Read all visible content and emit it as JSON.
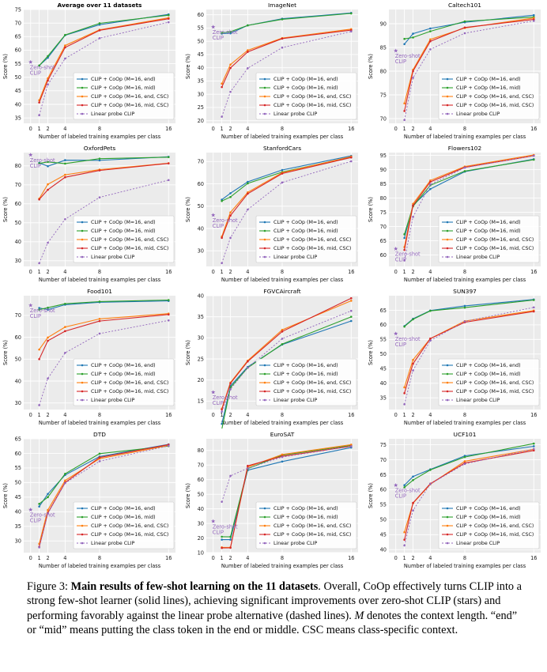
{
  "figure": {
    "x_values": [
      0,
      1,
      2,
      4,
      8,
      16
    ],
    "x_ticks": [
      "0",
      "1",
      "2",
      "4",
      "8",
      "16"
    ],
    "xlabel": "Number of labeled training examples per class",
    "ylabel": "Score (%)",
    "zero_shot_label": [
      "Zero-shot",
      "CLIP"
    ],
    "legend": [
      {
        "name": "CLIP + CoOp (M=16, end)",
        "color": "#1f77b4"
      },
      {
        "name": "CLIP + CoOp (M=16, mid)",
        "color": "#2ca02c"
      },
      {
        "name": "CLIP + CoOp (M=16, end, CSC)",
        "color": "#ff7f0e"
      },
      {
        "name": "CLIP + CoOp (M=16, mid, CSC)",
        "color": "#d62728"
      },
      {
        "name": "Linear probe CLIP",
        "color": "#9467bd"
      }
    ],
    "colors": {
      "plot_bg": "#ebebeb",
      "grid": "#ffffff",
      "zero_shot": "#9467bd"
    }
  },
  "chart_data": [
    {
      "type": "line",
      "title": "Average over 11 datasets",
      "title_bold": true,
      "ylim": [
        33,
        75
      ],
      "yticks": [
        35,
        40,
        45,
        50,
        55,
        60,
        65,
        70,
        75
      ],
      "zero_shot": 55.6,
      "series": [
        {
          "name": "CLIP + CoOp (M=16, end)",
          "values": [
            54.3,
            57.2,
            65.5,
            69.4,
            73.2
          ]
        },
        {
          "name": "CLIP + CoOp (M=16, mid)",
          "values": [
            54.3,
            57.8,
            65.6,
            69.9,
            72.9
          ]
        },
        {
          "name": "CLIP + CoOp (M=16, end, CSC)",
          "values": [
            41.5,
            49.6,
            61.7,
            67.5,
            71.9
          ]
        },
        {
          "name": "CLIP + CoOp (M=16, mid, CSC)",
          "values": [
            40.7,
            48.8,
            61.0,
            67.3,
            71.6
          ]
        },
        {
          "name": "Linear probe CLIP",
          "values": [
            36.0,
            47.3,
            56.9,
            64.4,
            70.3
          ]
        }
      ]
    },
    {
      "type": "line",
      "title": "ImageNet",
      "ylim": [
        19,
        62
      ],
      "yticks": [
        20,
        25,
        30,
        35,
        40,
        45,
        50,
        55,
        60
      ],
      "zero_shot": 55.4,
      "series": [
        {
          "name": "CLIP + CoOp (M=16, end)",
          "values": [
            52.9,
            53.0,
            56.0,
            58.5,
            60.7
          ]
        },
        {
          "name": "CLIP + CoOp (M=16, mid)",
          "values": [
            53.2,
            53.6,
            56.0,
            58.3,
            60.5
          ]
        },
        {
          "name": "CLIP + CoOp (M=16, end, CSC)",
          "values": [
            34.0,
            41.2,
            46.6,
            51.2,
            54.6
          ]
        },
        {
          "name": "CLIP + CoOp (M=16, mid, CSC)",
          "values": [
            32.7,
            39.9,
            46.0,
            51.0,
            54.2
          ]
        },
        {
          "name": "Linear probe CLIP",
          "values": [
            21.5,
            30.9,
            39.8,
            47.6,
            53.7
          ]
        }
      ]
    },
    {
      "type": "line",
      "title": "Caltech101",
      "ylim": [
        69,
        93
      ],
      "yticks": [
        70,
        75,
        80,
        85,
        90
      ],
      "zero_shot": 84.3,
      "series": [
        {
          "name": "CLIP + CoOp (M=16, end)",
          "values": [
            85.7,
            87.9,
            89.0,
            90.3,
            91.8
          ]
        },
        {
          "name": "CLIP + CoOp (M=16, mid)",
          "values": [
            86.8,
            87.1,
            88.4,
            90.5,
            91.4
          ]
        },
        {
          "name": "CLIP + CoOp (M=16, end, CSC)",
          "values": [
            73.2,
            80.3,
            86.7,
            89.1,
            91.2
          ]
        },
        {
          "name": "CLIP + CoOp (M=16, mid, CSC)",
          "values": [
            71.6,
            80.0,
            86.3,
            89.2,
            90.9
          ]
        },
        {
          "name": "Linear probe CLIP",
          "values": [
            69.7,
            78.6,
            84.6,
            88.0,
            90.6
          ]
        }
      ]
    },
    {
      "type": "line",
      "title": "OxfordPets",
      "ylim": [
        27,
        87
      ],
      "yticks": [
        30,
        40,
        50,
        60,
        70,
        80
      ],
      "zero_shot": 85.8,
      "series": [
        {
          "name": "CLIP + CoOp (M=16, end)",
          "values": [
            81.6,
            79.8,
            83.0,
            82.9,
            84.8
          ]
        },
        {
          "name": "CLIP + CoOp (M=16, mid)",
          "values": [
            81.3,
            82.1,
            81.2,
            83.8,
            84.6
          ]
        },
        {
          "name": "CLIP + CoOp (M=16, end, CSC)",
          "values": [
            62.7,
            70.3,
            75.3,
            78.0,
            81.4
          ]
        },
        {
          "name": "CLIP + CoOp (M=16, mid, CSC)",
          "values": [
            62.3,
            67.4,
            74.0,
            77.6,
            81.3
          ]
        },
        {
          "name": "Linear probe CLIP",
          "values": [
            28.7,
            39.5,
            51.9,
            63.4,
            72.5
          ]
        }
      ]
    },
    {
      "type": "line",
      "title": "StanfordCars",
      "ylim": [
        23,
        74
      ],
      "yticks": [
        30,
        40,
        50,
        60,
        70
      ],
      "zero_shot": 46.0,
      "series": [
        {
          "name": "CLIP + CoOp (M=16, end)",
          "values": [
            52.9,
            55.8,
            60.9,
            66.2,
            72.5
          ]
        },
        {
          "name": "CLIP + CoOp (M=16, mid)",
          "values": [
            52.3,
            54.1,
            60.2,
            65.3,
            72.0
          ]
        },
        {
          "name": "CLIP + CoOp (M=16, end, CSC)",
          "values": [
            36.4,
            47.2,
            56.2,
            65.0,
            72.2
          ]
        },
        {
          "name": "CLIP + CoOp (M=16, mid, CSC)",
          "values": [
            35.8,
            45.8,
            55.6,
            64.6,
            71.8
          ]
        },
        {
          "name": "Linear probe CLIP",
          "values": [
            24.5,
            35.8,
            48.5,
            60.6,
            70.1
          ]
        }
      ]
    },
    {
      "type": "line",
      "title": "Flowers102",
      "ylim": [
        56,
        96
      ],
      "yticks": [
        60,
        65,
        70,
        75,
        80,
        85,
        90,
        95
      ],
      "zero_shot": 62.2,
      "series": [
        {
          "name": "CLIP + CoOp (M=16, end)",
          "values": [
            66.0,
            77.5,
            83.2,
            89.3,
            93.7
          ]
        },
        {
          "name": "CLIP + CoOp (M=16, mid)",
          "values": [
            67.3,
            77.1,
            84.5,
            89.5,
            93.5
          ]
        },
        {
          "name": "CLIP + CoOp (M=16, end, CSC)",
          "values": [
            62.8,
            78.0,
            86.2,
            91.1,
            95.2
          ]
        },
        {
          "name": "CLIP + CoOp (M=16, mid, CSC)",
          "values": [
            61.8,
            77.4,
            85.7,
            90.8,
            94.9
          ]
        },
        {
          "name": "Linear probe CLIP",
          "values": [
            58.1,
            73.4,
            84.8,
            90.7,
            94.9
          ]
        }
      ]
    },
    {
      "type": "line",
      "title": "Food101",
      "ylim": [
        27,
        79
      ],
      "yticks": [
        30,
        40,
        50,
        60,
        70
      ],
      "zero_shot": 74.6,
      "series": [
        {
          "name": "CLIP + CoOp (M=16, end)",
          "values": [
            73.4,
            72.6,
            74.9,
            76.0,
            76.6
          ]
        },
        {
          "name": "CLIP + CoOp (M=16, mid)",
          "values": [
            72.6,
            73.5,
            75.3,
            76.3,
            77.0
          ]
        },
        {
          "name": "CLIP + CoOp (M=16, end, CSC)",
          "values": [
            54.4,
            59.9,
            64.7,
            68.4,
            70.8
          ]
        },
        {
          "name": "CLIP + CoOp (M=16, mid, CSC)",
          "values": [
            50.0,
            58.4,
            62.8,
            67.4,
            70.4
          ]
        },
        {
          "name": "Linear probe CLIP",
          "values": [
            29.0,
            41.2,
            52.9,
            61.7,
            67.7
          ]
        }
      ]
    },
    {
      "type": "line",
      "title": "FGVCAircraft",
      "ylim": [
        13,
        40
      ],
      "yticks": [
        15,
        20,
        25,
        30,
        35,
        40
      ],
      "zero_shot": 17.1,
      "series": [
        {
          "name": "CLIP + CoOp (M=16, end)",
          "values": [
            9.6,
            18.6,
            23.1,
            28.4,
            34.0
          ]
        },
        {
          "name": "CLIP + CoOp (M=16, mid)",
          "values": [
            8.3,
            18.2,
            22.9,
            28.5,
            35.0
          ]
        },
        {
          "name": "CLIP + CoOp (M=16, end, CSC)",
          "values": [
            13.2,
            19.4,
            24.6,
            31.9,
            38.8
          ]
        },
        {
          "name": "CLIP + CoOp (M=16, mid, CSC)",
          "values": [
            13.0,
            19.2,
            24.4,
            31.5,
            39.4
          ]
        },
        {
          "name": "Linear probe CLIP",
          "values": [
            12.5,
            17.8,
            22.9,
            29.8,
            36.4
          ]
        }
      ]
    },
    {
      "type": "line",
      "title": "SUN397",
      "ylim": [
        31,
        70
      ],
      "yticks": [
        35,
        40,
        45,
        50,
        55,
        60,
        65
      ],
      "zero_shot": 57.0,
      "series": [
        {
          "name": "CLIP + CoOp (M=16, end)",
          "values": [
            59.6,
            62.1,
            64.9,
            66.5,
            68.7
          ]
        },
        {
          "name": "CLIP + CoOp (M=16, mid)",
          "values": [
            59.4,
            61.9,
            64.8,
            65.9,
            68.5
          ]
        },
        {
          "name": "CLIP + CoOp (M=16, end, CSC)",
          "values": [
            38.6,
            48.0,
            55.3,
            61.3,
            64.9
          ]
        },
        {
          "name": "CLIP + CoOp (M=16, mid, CSC)",
          "values": [
            36.6,
            46.7,
            55.3,
            60.9,
            64.6
          ]
        },
        {
          "name": "Linear probe CLIP",
          "values": [
            32.8,
            44.4,
            54.6,
            61.2,
            66.0
          ]
        }
      ]
    },
    {
      "type": "line",
      "title": "DTD",
      "ylim": [
        26,
        65
      ],
      "yticks": [
        30,
        35,
        40,
        45,
        50,
        55,
        60,
        65
      ],
      "zero_shot": 40.7,
      "series": [
        {
          "name": "CLIP + CoOp (M=16, end)",
          "values": [
            41.8,
            46.1,
            52.6,
            58.9,
            63.1
          ]
        },
        {
          "name": "CLIP + CoOp (M=16, mid)",
          "values": [
            42.7,
            45.0,
            53.0,
            59.9,
            62.5
          ]
        },
        {
          "name": "CLIP + CoOp (M=16, end, CSC)",
          "values": [
            29.0,
            40.6,
            50.7,
            58.2,
            62.7
          ]
        },
        {
          "name": "CLIP + CoOp (M=16, mid, CSC)",
          "values": [
            28.0,
            39.6,
            50.0,
            58.6,
            63.0
          ]
        },
        {
          "name": "Linear probe CLIP",
          "values": [
            27.8,
            39.4,
            49.8,
            57.3,
            62.6
          ]
        }
      ]
    },
    {
      "type": "line",
      "title": "EuroSAT",
      "ylim": [
        10,
        88
      ],
      "yticks": [
        10,
        20,
        30,
        40,
        50,
        60,
        70,
        80
      ],
      "zero_shot": 31.5,
      "series": [
        {
          "name": "CLIP + CoOp (M=16, end)",
          "values": [
            18.9,
            18.9,
            66.5,
            72.4,
            82.0
          ]
        },
        {
          "name": "CLIP + CoOp (M=16, mid)",
          "values": [
            20.9,
            20.8,
            67.5,
            76.8,
            83.5
          ]
        },
        {
          "name": "CLIP + CoOp (M=16, end, CSC)",
          "values": [
            13.6,
            13.6,
            68.6,
            77.2,
            84.0
          ]
        },
        {
          "name": "CLIP + CoOp (M=16, mid, CSC)",
          "values": [
            13.2,
            13.3,
            69.5,
            76.0,
            82.9
          ]
        },
        {
          "name": "Linear probe CLIP",
          "values": [
            44.8,
            62.6,
            67.8,
            75.5,
            82.8
          ]
        }
      ]
    },
    {
      "type": "line",
      "title": "UCF101",
      "ylim": [
        39,
        77
      ],
      "yticks": [
        40,
        45,
        50,
        55,
        60,
        65,
        70,
        75
      ],
      "zero_shot": 61.5,
      "series": [
        {
          "name": "CLIP + CoOp (M=16, end)",
          "values": [
            61.5,
            64.4,
            66.8,
            71.3,
            74.5
          ]
        },
        {
          "name": "CLIP + CoOp (M=16, mid)",
          "values": [
            60.8,
            63.2,
            66.6,
            70.9,
            75.4
          ]
        },
        {
          "name": "CLIP + CoOp (M=16, end, CSC)",
          "values": [
            45.8,
            55.5,
            61.8,
            69.5,
            73.5
          ]
        },
        {
          "name": "CLIP + CoOp (M=16, mid, CSC)",
          "values": [
            43.3,
            55.6,
            62.0,
            68.9,
            73.1
          ]
        },
        {
          "name": "Linear probe CLIP",
          "values": [
            41.4,
            53.1,
            61.9,
            68.6,
            73.6
          ]
        }
      ]
    }
  ],
  "caption": {
    "label": "Figure 3:",
    "bold_title": "Main results of few-shot learning on the 11 datasets",
    "text_1": ". Overall, CoOp effectively turns CLIP into a strong few-shot learner (solid lines), achieving significant improvements over zero-shot CLIP (stars) and performing favorably against the linear probe alternative (dashed lines). ",
    "var_m": "M",
    "text_2": " denotes the context length. “end” or “mid” means putting the class token in the end or middle. CSC means class-specific context."
  }
}
